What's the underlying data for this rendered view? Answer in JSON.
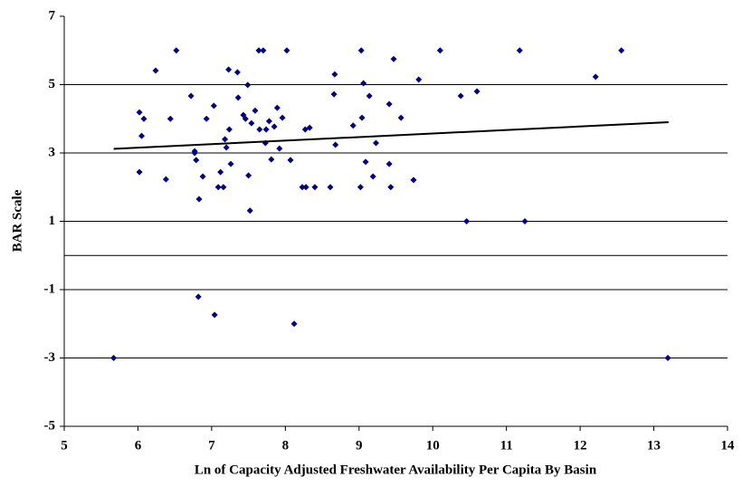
{
  "chart_data": {
    "type": "scatter",
    "x_label": "Ln of Capacity Adjusted Freshwater Availability Per Capita By Basin",
    "y_label": "BAR Scale",
    "series": [
      {
        "name": "BAR Scale",
        "color": "#000080",
        "x": [
          5.67,
          6.02,
          6.05,
          6.08,
          6.02,
          6.24,
          6.38,
          6.44,
          6.52,
          6.72,
          6.77,
          6.77,
          6.79,
          6.83,
          6.82,
          6.88,
          6.93,
          7.03,
          7.04,
          7.09,
          7.12,
          7.16,
          7.18,
          7.2,
          7.23,
          7.24,
          7.26,
          7.35,
          7.36,
          7.43,
          7.46,
          7.49,
          7.5,
          7.52,
          7.54,
          7.59,
          7.64,
          7.65,
          7.7,
          7.73,
          7.74,
          7.78,
          7.81,
          7.85,
          7.89,
          7.92,
          7.96,
          8.02,
          8.07,
          8.12,
          8.23,
          8.27,
          8.28,
          8.33,
          8.4,
          8.61,
          8.66,
          8.67,
          8.68,
          8.92,
          9.02,
          9.03,
          9.04,
          9.06,
          9.09,
          9.14,
          9.19,
          9.23,
          9.41,
          9.41,
          9.43,
          9.47,
          9.57,
          9.74,
          9.81,
          10.1,
          10.38,
          10.46,
          10.6,
          11.18,
          11.25,
          12.21,
          12.56,
          13.19
        ],
        "values": [
          -3,
          4.19,
          3.5,
          4.0,
          2.44,
          5.41,
          2.23,
          4.0,
          6.0,
          4.67,
          3.0,
          3.05,
          2.79,
          1.65,
          -1.21,
          2.31,
          4.0,
          4.38,
          -1.74,
          2.0,
          2.44,
          2.0,
          3.4,
          3.16,
          5.44,
          3.69,
          2.68,
          5.36,
          4.62,
          4.11,
          4.0,
          4.99,
          2.34,
          1.31,
          3.87,
          4.24,
          6.0,
          3.69,
          6.0,
          3.29,
          3.69,
          3.93,
          2.81,
          3.77,
          4.32,
          3.13,
          4.03,
          6.0,
          2.79,
          -2.0,
          2.0,
          3.69,
          2.0,
          3.74,
          2.0,
          2.0,
          4.72,
          5.3,
          3.24,
          3.8,
          2.0,
          6.0,
          4.03,
          5.04,
          2.74,
          4.67,
          2.31,
          3.29,
          2.68,
          4.43,
          2.0,
          5.75,
          4.03,
          2.21,
          5.15,
          6.0,
          4.67,
          1.0,
          4.8,
          6.0,
          1.0,
          5.23,
          6.0,
          -3
        ]
      }
    ],
    "trendline": {
      "color": "#000000",
      "x": [
        5.67,
        13.2
      ],
      "y": [
        3.12,
        3.9
      ]
    },
    "xlim": [
      5,
      14
    ],
    "xticks": [
      5,
      6,
      7,
      8,
      9,
      10,
      11,
      12,
      13,
      14
    ],
    "ylim": [
      -5,
      7
    ],
    "yticks": [
      -5,
      -3,
      -1,
      1,
      3,
      5,
      7
    ],
    "x_axis_crosses_at": 0,
    "grid": true
  }
}
